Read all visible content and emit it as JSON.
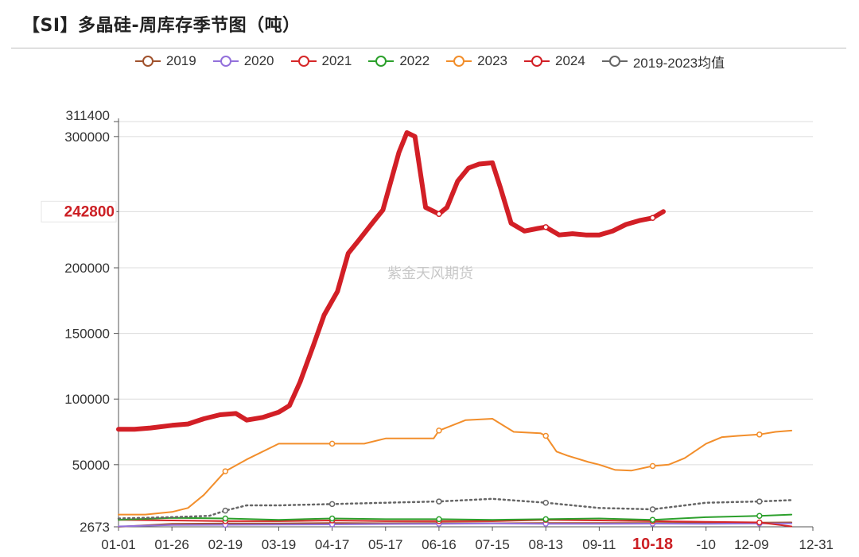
{
  "title": "【SI】多晶硅-周库存季节图（吨）",
  "watermark": "紫金天风期货",
  "chart_data": {
    "type": "line",
    "x_categories": [
      "01-01",
      "01-26",
      "02-19",
      "03-19",
      "04-17",
      "05-17",
      "06-16",
      "07-15",
      "08-13",
      "09-11",
      "10-18",
      "-10",
      "12-09",
      "12-31"
    ],
    "y_ticks": [
      2673,
      50000,
      100000,
      150000,
      200000,
      242800,
      300000,
      311400
    ],
    "ylim": [
      2673,
      311400
    ],
    "highlight": {
      "x_label": "10-18",
      "y_label": "242800",
      "color": "#cc1f24"
    },
    "legend": [
      "2019",
      "2020",
      "2021",
      "2022",
      "2023",
      "2024",
      "2019-2023均值"
    ],
    "series": [
      {
        "name": "2019",
        "color": "#a0522d",
        "width": 2,
        "dashed": false,
        "x": [
          0,
          1,
          2,
          3,
          4,
          5,
          6,
          7,
          8,
          9,
          10,
          11,
          12,
          12.6
        ],
        "y": [
          2673,
          5000,
          5200,
          5300,
          5500,
          5400,
          5500,
          5400,
          5500,
          5600,
          5600,
          5700,
          5900,
          6000
        ]
      },
      {
        "name": "2020",
        "color": "#9370db",
        "width": 2,
        "dashed": false,
        "x": [
          0,
          1,
          2,
          3,
          4,
          5,
          6,
          7,
          8,
          9,
          10,
          11,
          12,
          12.6
        ],
        "y": [
          3000,
          4000,
          4200,
          4300,
          4500,
          4800,
          5000,
          5200,
          5000,
          4900,
          5100,
          5000,
          5200,
          5300
        ]
      },
      {
        "name": "2021",
        "color": "#d62728",
        "width": 2,
        "dashed": false,
        "x": [
          0,
          1,
          2,
          3,
          4,
          5,
          6,
          7,
          8,
          9,
          10,
          11,
          12,
          12.6
        ],
        "y": [
          8000,
          7500,
          7000,
          7000,
          7500,
          7000,
          7000,
          7000,
          8000,
          7500,
          7000,
          6500,
          6000,
          3000
        ]
      },
      {
        "name": "2022",
        "color": "#2ca02c",
        "width": 2,
        "dashed": false,
        "x": [
          0,
          1,
          2,
          3,
          4,
          5,
          6,
          7,
          8,
          9,
          10,
          11,
          12,
          12.6
        ],
        "y": [
          8000,
          9500,
          9000,
          8000,
          9000,
          8500,
          8500,
          8000,
          8500,
          9000,
          8000,
          10000,
          11000,
          12000
        ]
      },
      {
        "name": "2023",
        "color": "#f28e2b",
        "width": 2,
        "dashed": false,
        "x": [
          0,
          0.5,
          1,
          1.3,
          1.6,
          2,
          2.4,
          3,
          4,
          4.6,
          5,
          5.5,
          5.9,
          6,
          6.5,
          7,
          7.4,
          7.9,
          8,
          8.2,
          8.4,
          8.8,
          9,
          9.3,
          9.6,
          10,
          10.3,
          10.6,
          11,
          11.3,
          11.6,
          12,
          12.3,
          12.6
        ],
        "y": [
          12000,
          12000,
          14000,
          17000,
          27000,
          45000,
          54000,
          66000,
          66000,
          66000,
          70000,
          70000,
          70000,
          76000,
          84000,
          85000,
          75000,
          74000,
          72000,
          60000,
          57000,
          52000,
          50000,
          46000,
          45500,
          49000,
          50000,
          55000,
          66000,
          71000,
          72000,
          73000,
          75000,
          76000
        ]
      },
      {
        "name": "2024",
        "color": "#d21f26",
        "width": 6,
        "dashed": false,
        "x": [
          0,
          0.3,
          0.6,
          1,
          1.3,
          1.6,
          1.9,
          2.2,
          2.4,
          2.7,
          3,
          3.2,
          3.4,
          3.65,
          3.85,
          4.1,
          4.3,
          4.5,
          4.75,
          4.95,
          5.25,
          5.4,
          5.55,
          5.75,
          6,
          6.15,
          6.35,
          6.55,
          6.75,
          7,
          7.15,
          7.35,
          7.6,
          7.85,
          8,
          8.25,
          8.5,
          8.75,
          9,
          9.25,
          9.5,
          9.75,
          10,
          10.2
        ],
        "y": [
          77000,
          77000,
          78000,
          80000,
          81000,
          85000,
          88000,
          89000,
          84000,
          86000,
          90000,
          95000,
          113000,
          141000,
          164000,
          182000,
          211000,
          221000,
          234000,
          244000,
          288000,
          303000,
          300000,
          246000,
          241000,
          246000,
          266000,
          276000,
          279000,
          280000,
          261000,
          234000,
          228000,
          230000,
          231000,
          225000,
          226000,
          225000,
          225000,
          228000,
          233000,
          236000,
          238000,
          242800
        ]
      },
      {
        "name": "2019-2023均值",
        "color": "#666666",
        "width": 2.5,
        "dashed": true,
        "x": [
          0,
          1,
          1.7,
          2,
          2.4,
          3,
          4,
          5,
          6,
          7,
          8,
          9,
          10,
          11,
          12,
          12.6
        ],
        "y": [
          9000,
          10000,
          11000,
          15000,
          19000,
          19000,
          20000,
          21000,
          22000,
          24000,
          21000,
          17000,
          16000,
          21000,
          22000,
          23000
        ]
      }
    ]
  }
}
